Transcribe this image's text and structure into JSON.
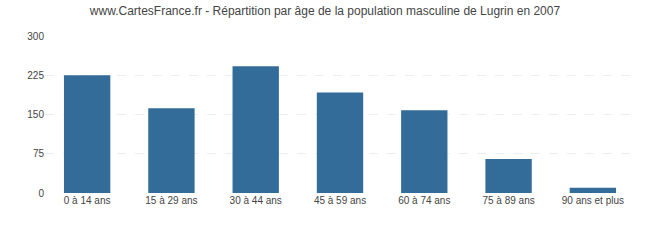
{
  "chart_data": {
    "type": "bar",
    "title": "www.CartesFrance.fr - Répartition par âge de la population masculine de Lugrin en 2007",
    "categories": [
      "0 à 14 ans",
      "15 à 29 ans",
      "30 à 44 ans",
      "45 à 59 ans",
      "60 à 74 ans",
      "75 à 89 ans",
      "90 ans et plus"
    ],
    "values": [
      225,
      162,
      242,
      192,
      158,
      65,
      10
    ],
    "color": "#336b99",
    "ylim": [
      0,
      300
    ],
    "yticks": [
      0,
      75,
      150,
      225,
      300
    ],
    "grid": true
  }
}
